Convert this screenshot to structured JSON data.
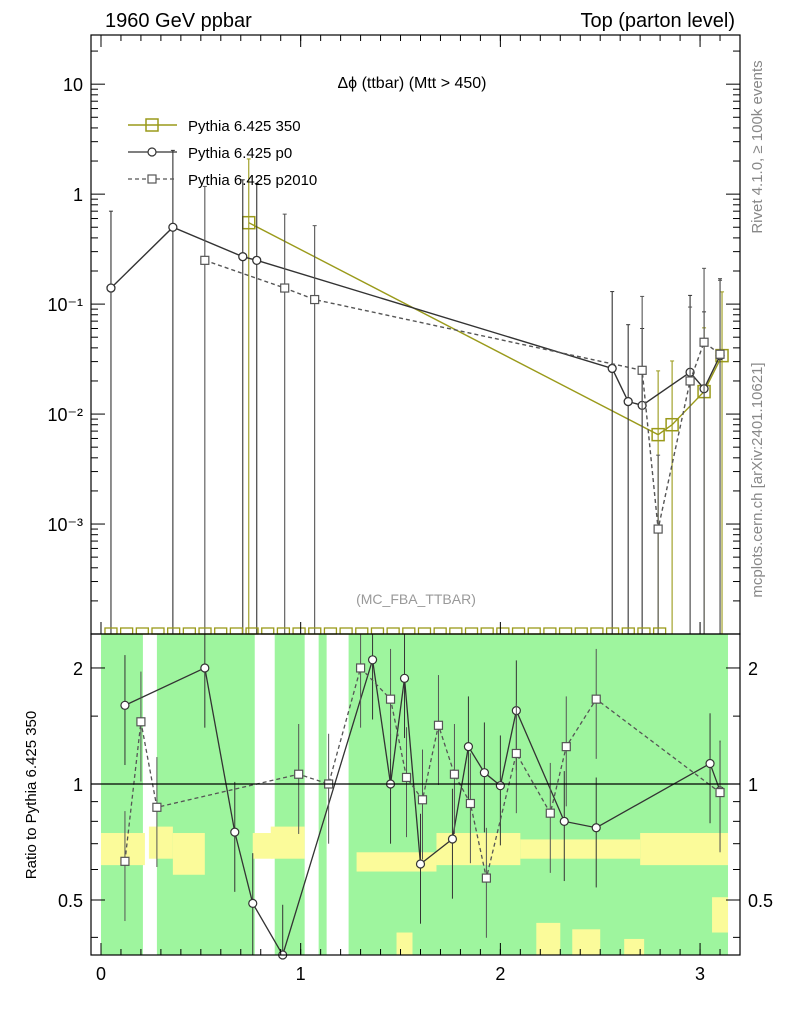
{
  "header": {
    "left": "1960 GeV ppbar",
    "right": "Top (parton level)"
  },
  "side_labels": {
    "rivet": "Rivet 4.1.0, ≥ 100k events",
    "mcplots": "mcplots.cern.ch [arXiv:2401.10621]"
  },
  "colors": {
    "p350": "#9a9a1a",
    "p0": "#333333",
    "p2010": "#555555",
    "band_green": "#9ef59e",
    "band_yellow": "#fbfb9a"
  },
  "chart_data": {
    "type": "line",
    "title": "Δϕ (ttbar) (Mtt > 450)",
    "watermark": "(MC_FBA_TTBAR)",
    "xlabel": "",
    "ylabel_ratio": "Ratio to Pythia 6.425 350",
    "xlim": [
      -0.05,
      3.2
    ],
    "ylim_main": [
      0.0001,
      28
    ],
    "ylim_ratio": [
      0.36,
      2.45
    ],
    "x_ticks": [
      "0",
      "1",
      "2",
      "3"
    ],
    "y_ticks_main": [
      "10",
      "1",
      "10⁻¹",
      "10⁻²",
      "10⁻³"
    ],
    "y_ticks_ratio": [
      "0.5",
      "1",
      "2"
    ],
    "legend": [
      "Pythia 6.425 350",
      "Pythia 6.425 p0",
      "Pythia 6.425 p2010"
    ],
    "series": [
      {
        "name": "Pythia 6.425 350",
        "marker": "square",
        "style": "solid",
        "points": [
          [
            0.74,
            0.55
          ],
          [
            2.79,
            0.0065
          ],
          [
            2.86,
            0.008
          ],
          [
            3.02,
            0.016
          ],
          [
            3.11,
            0.034
          ]
        ]
      },
      {
        "name": "Pythia 6.425 p0",
        "marker": "circle",
        "style": "solid",
        "points": [
          [
            0.05,
            0.14
          ],
          [
            0.36,
            0.5
          ],
          [
            0.71,
            0.27
          ],
          [
            0.78,
            0.25
          ],
          [
            2.56,
            0.026
          ],
          [
            2.64,
            0.013
          ],
          [
            2.71,
            0.012
          ],
          [
            2.95,
            0.024
          ],
          [
            3.02,
            0.017
          ],
          [
            3.1,
            0.034
          ]
        ]
      },
      {
        "name": "Pythia 6.425 p2010",
        "marker": "square-open",
        "style": "dashed",
        "points": [
          [
            0.52,
            0.25
          ],
          [
            0.92,
            0.14
          ],
          [
            1.07,
            0.11
          ],
          [
            2.71,
            0.025
          ],
          [
            2.79,
            0.0009
          ],
          [
            2.95,
            0.02
          ],
          [
            3.02,
            0.045
          ],
          [
            3.1,
            0.035
          ]
        ]
      }
    ],
    "ratio_series": [
      {
        "name": "Pythia 6.425 p0",
        "points": [
          [
            0.12,
            1.6
          ],
          [
            0.52,
            2.0
          ],
          [
            0.67,
            0.75
          ],
          [
            0.76,
            0.49
          ],
          [
            0.91,
            0.36
          ],
          [
            1.36,
            2.1
          ],
          [
            1.45,
            1.0
          ],
          [
            1.52,
            1.88
          ],
          [
            1.6,
            0.62
          ],
          [
            1.76,
            0.72
          ],
          [
            1.84,
            1.25
          ],
          [
            1.92,
            1.07
          ],
          [
            2.0,
            0.99
          ],
          [
            2.08,
            1.55
          ],
          [
            2.32,
            0.8
          ],
          [
            2.48,
            0.77
          ],
          [
            3.05,
            1.13
          ],
          [
            3.1,
            0.96
          ]
        ]
      },
      {
        "name": "Pythia 6.425 p2010",
        "points": [
          [
            0.12,
            0.63
          ],
          [
            0.2,
            1.45
          ],
          [
            0.28,
            0.87
          ],
          [
            0.99,
            1.06
          ],
          [
            1.14,
            1.0
          ],
          [
            1.3,
            2.0
          ],
          [
            1.45,
            1.66
          ],
          [
            1.53,
            1.04
          ],
          [
            1.61,
            0.91
          ],
          [
            1.69,
            1.42
          ],
          [
            1.77,
            1.06
          ],
          [
            1.85,
            0.89
          ],
          [
            1.93,
            0.57
          ],
          [
            2.08,
            1.2
          ],
          [
            2.25,
            0.84
          ],
          [
            2.33,
            1.25
          ],
          [
            2.48,
            1.66
          ],
          [
            3.1,
            0.95
          ]
        ]
      }
    ]
  }
}
